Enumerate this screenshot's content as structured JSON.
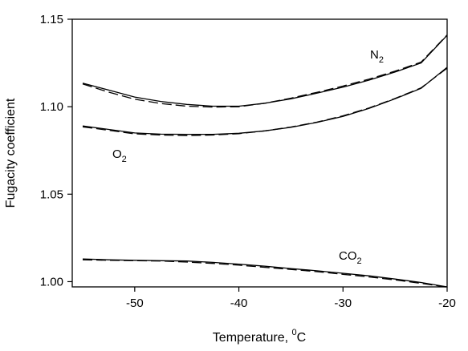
{
  "chart_data": {
    "type": "line",
    "xlabel": {
      "text": "Temperature, ",
      "sup": "0",
      "unit": "C"
    },
    "ylabel": "Fugacity coefficient",
    "xlim": [
      -56,
      -20
    ],
    "ylim": [
      0.997,
      1.15
    ],
    "xticks": [
      -50,
      -40,
      -30,
      -20
    ],
    "xtick_labels": [
      "-50",
      "-40",
      "-30",
      "-20"
    ],
    "yticks": [
      1.0,
      1.05,
      1.1,
      1.15
    ],
    "ytick_labels": [
      "1.00",
      "1.05",
      "1.10",
      "1.15"
    ],
    "grid": false,
    "series": [
      {
        "name": "N2",
        "label_main": "N",
        "label_sub": "2",
        "x": [
          -55,
          -52.5,
          -50,
          -47.5,
          -45,
          -42.5,
          -40,
          -37.5,
          -35,
          -32.5,
          -30,
          -27.5,
          -25,
          -22.5,
          -20
        ],
        "solid": [
          1.1135,
          1.1095,
          1.1055,
          1.103,
          1.1013,
          1.1003,
          1.1003,
          1.102,
          1.1045,
          1.1077,
          1.1112,
          1.1152,
          1.1198,
          1.125,
          1.1408
        ],
        "dashed": [
          1.113,
          1.1083,
          1.1043,
          1.1018,
          1.1003,
          1.0998,
          1.1,
          1.102,
          1.1049,
          1.1082,
          1.1118,
          1.1158,
          1.1203,
          1.1255,
          1.141
        ]
      },
      {
        "name": "O2",
        "label_main": "O",
        "label_sub": "2",
        "x": [
          -55,
          -52.5,
          -50,
          -47.5,
          -45,
          -42.5,
          -40,
          -37.5,
          -35,
          -32.5,
          -30,
          -27.5,
          -25,
          -22.5,
          -20
        ],
        "solid": [
          1.089,
          1.087,
          1.085,
          1.0843,
          1.0842,
          1.0842,
          1.0848,
          1.0862,
          1.0882,
          1.091,
          1.0945,
          1.099,
          1.1045,
          1.1105,
          1.1225
        ],
        "dashed": [
          1.0885,
          1.0865,
          1.0845,
          1.0838,
          1.0835,
          1.0838,
          1.0846,
          1.0862,
          1.0884,
          1.0912,
          1.0948,
          1.0993,
          1.1047,
          1.1108,
          1.122
        ]
      },
      {
        "name": "CO2",
        "label_main": "CO",
        "label_sub": "2",
        "x": [
          -55,
          -52.5,
          -50,
          -47.5,
          -45,
          -42.5,
          -40,
          -37.5,
          -35,
          -32.5,
          -30,
          -27.5,
          -25,
          -22.5,
          -20
        ],
        "solid": [
          1.013,
          1.0125,
          1.0122,
          1.012,
          1.0118,
          1.011,
          1.01,
          1.0088,
          1.0075,
          1.0062,
          1.0048,
          1.0033,
          1.0015,
          0.9995,
          0.997
        ],
        "dashed": [
          1.0125,
          1.0122,
          1.012,
          1.0118,
          1.0112,
          1.0104,
          1.0094,
          1.0082,
          1.007,
          1.0057,
          1.0042,
          1.0027,
          1.001,
          0.999,
          0.9968
        ]
      }
    ]
  }
}
